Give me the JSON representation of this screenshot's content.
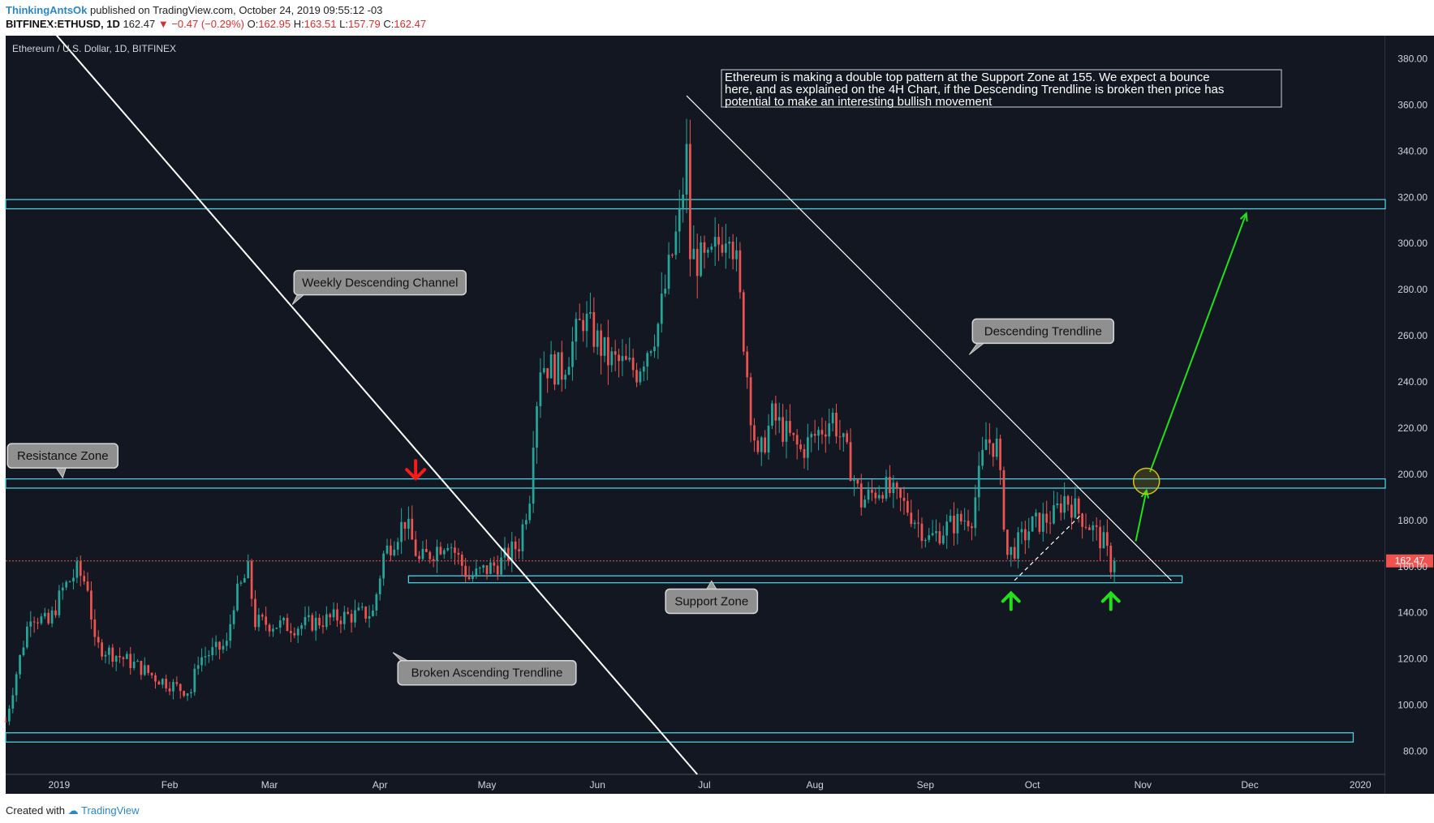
{
  "header": {
    "user": "ThinkingAntsOk",
    "published": "published on TradingView.com, October 24, 2019 09:55:12 -03",
    "symbol": "BITFINEX:ETHUSD, 1D",
    "last": "162.47",
    "change": "▼ −0.47 (−0.29%)",
    "o_label": "O:",
    "o_value": "162.95",
    "h_label": "H:",
    "h_value": "163.51",
    "l_label": "L:",
    "l_value": "157.79",
    "c_label": "C:",
    "c_value": "162.47"
  },
  "footer": {
    "created_with": "Created with",
    "brand": "TradingView"
  },
  "colors": {
    "bg": "#131722",
    "up": "#26a69a",
    "down": "#ef5350",
    "zone": "#4dd0e1",
    "arrow_green": "#22e01a",
    "arrow_red": "#ff1a1a",
    "circle": "#d4c21a"
  },
  "chart_data": {
    "type": "candlestick",
    "title": "Ethereum / U.S. Dollar, 1D, BITFINEX",
    "ylim": [
      70,
      390
    ],
    "yticks": [
      "380.00",
      "360.00",
      "340.00",
      "320.00",
      "300.00",
      "280.00",
      "260.00",
      "240.00",
      "220.00",
      "200.00",
      "180.00",
      "160.00",
      "140.00",
      "120.00",
      "100.00",
      "80.00"
    ],
    "ytick_values": [
      380,
      360,
      340,
      320,
      300,
      280,
      260,
      240,
      220,
      200,
      180,
      160,
      140,
      120,
      100,
      80
    ],
    "last_price_label": "162.47",
    "last_price": 162.47,
    "x_range": [
      "2018-12-17",
      "2020-01-08"
    ],
    "xticks": [
      {
        "label": "2019",
        "date": "2019-01-01"
      },
      {
        "label": "Feb",
        "date": "2019-02-01"
      },
      {
        "label": "Mar",
        "date": "2019-03-01"
      },
      {
        "label": "Apr",
        "date": "2019-04-01"
      },
      {
        "label": "May",
        "date": "2019-05-01"
      },
      {
        "label": "Jun",
        "date": "2019-06-01"
      },
      {
        "label": "Jul",
        "date": "2019-07-01"
      },
      {
        "label": "Aug",
        "date": "2019-08-01"
      },
      {
        "label": "Sep",
        "date": "2019-09-01"
      },
      {
        "label": "Oct",
        "date": "2019-10-01"
      },
      {
        "label": "Nov",
        "date": "2019-11-01"
      },
      {
        "label": "Dec",
        "date": "2019-12-01"
      },
      {
        "label": "2020",
        "date": "2020-01-01"
      }
    ],
    "candles_start_date": "2018-12-17",
    "candles_end_date": "2019-10-24",
    "close_anchors": [
      {
        "date": "2018-12-17",
        "close": 93
      },
      {
        "date": "2018-12-20",
        "close": 114
      },
      {
        "date": "2018-12-24",
        "close": 140
      },
      {
        "date": "2018-12-29",
        "close": 135
      },
      {
        "date": "2019-01-02",
        "close": 150
      },
      {
        "date": "2019-01-06",
        "close": 158
      },
      {
        "date": "2019-01-09",
        "close": 152
      },
      {
        "date": "2019-01-11",
        "close": 126
      },
      {
        "date": "2019-01-18",
        "close": 121
      },
      {
        "date": "2019-01-24",
        "close": 116
      },
      {
        "date": "2019-01-28",
        "close": 112
      },
      {
        "date": "2019-02-04",
        "close": 107
      },
      {
        "date": "2019-02-07",
        "close": 106
      },
      {
        "date": "2019-02-09",
        "close": 120
      },
      {
        "date": "2019-02-17",
        "close": 126
      },
      {
        "date": "2019-02-19",
        "close": 145
      },
      {
        "date": "2019-02-23",
        "close": 158
      },
      {
        "date": "2019-02-25",
        "close": 136
      },
      {
        "date": "2019-03-08",
        "close": 134
      },
      {
        "date": "2019-03-20",
        "close": 138
      },
      {
        "date": "2019-03-30",
        "close": 140
      },
      {
        "date": "2019-04-02",
        "close": 165
      },
      {
        "date": "2019-04-08",
        "close": 180
      },
      {
        "date": "2019-04-12",
        "close": 162
      },
      {
        "date": "2019-04-20",
        "close": 172
      },
      {
        "date": "2019-04-26",
        "close": 155
      },
      {
        "date": "2019-05-05",
        "close": 162
      },
      {
        "date": "2019-05-10",
        "close": 170
      },
      {
        "date": "2019-05-13",
        "close": 192
      },
      {
        "date": "2019-05-14",
        "close": 218
      },
      {
        "date": "2019-05-16",
        "close": 248
      },
      {
        "date": "2019-05-22",
        "close": 245
      },
      {
        "date": "2019-05-28",
        "close": 268
      },
      {
        "date": "2019-06-04",
        "close": 250
      },
      {
        "date": "2019-06-12",
        "close": 245
      },
      {
        "date": "2019-06-18",
        "close": 265
      },
      {
        "date": "2019-06-21",
        "close": 288
      },
      {
        "date": "2019-06-24",
        "close": 310
      },
      {
        "date": "2019-06-26",
        "close": 338
      },
      {
        "date": "2019-06-27",
        "close": 295
      },
      {
        "date": "2019-07-02",
        "close": 290
      },
      {
        "date": "2019-07-08",
        "close": 310
      },
      {
        "date": "2019-07-10",
        "close": 290
      },
      {
        "date": "2019-07-14",
        "close": 228
      },
      {
        "date": "2019-07-16",
        "close": 205
      },
      {
        "date": "2019-07-20",
        "close": 225
      },
      {
        "date": "2019-07-28",
        "close": 210
      },
      {
        "date": "2019-08-06",
        "close": 225
      },
      {
        "date": "2019-08-10",
        "close": 208
      },
      {
        "date": "2019-08-14",
        "close": 188
      },
      {
        "date": "2019-08-20",
        "close": 195
      },
      {
        "date": "2019-08-27",
        "close": 185
      },
      {
        "date": "2019-09-02",
        "close": 172
      },
      {
        "date": "2019-09-08",
        "close": 178
      },
      {
        "date": "2019-09-14",
        "close": 182
      },
      {
        "date": "2019-09-18",
        "close": 215
      },
      {
        "date": "2019-09-21",
        "close": 212
      },
      {
        "date": "2019-09-24",
        "close": 165
      },
      {
        "date": "2019-09-26",
        "close": 168
      },
      {
        "date": "2019-10-01",
        "close": 178
      },
      {
        "date": "2019-10-07",
        "close": 182
      },
      {
        "date": "2019-10-10",
        "close": 190
      },
      {
        "date": "2019-10-13",
        "close": 185
      },
      {
        "date": "2019-10-17",
        "close": 178
      },
      {
        "date": "2019-10-21",
        "close": 170
      },
      {
        "date": "2019-10-23",
        "close": 161
      },
      {
        "date": "2019-10-24",
        "close": 162.47
      }
    ],
    "zones": [
      {
        "name": "Top Resistance",
        "low": 315,
        "high": 319,
        "start": "2018-12-17",
        "end": "2020-01-08"
      },
      {
        "name": "Resistance Zone",
        "low": 194,
        "high": 198,
        "start": "2018-12-17",
        "end": "2020-01-08"
      },
      {
        "name": "Support Zone",
        "low": 153,
        "high": 156,
        "start": "2019-04-09",
        "end": "2019-11-12"
      },
      {
        "name": "Lower Zone",
        "low": 84,
        "high": 88,
        "start": "2018-12-17",
        "end": "2019-12-30"
      }
    ],
    "lines": [
      {
        "name": "Weekly Descending Channel",
        "start": {
          "date": "2018-12-28",
          "price": 396
        },
        "end": {
          "date": "2019-06-29",
          "price": 70
        }
      },
      {
        "name": "Descending Trendline",
        "start": {
          "date": "2019-06-26",
          "price": 364
        },
        "end": {
          "date": "2019-11-09",
          "price": 154
        }
      },
      {
        "name": "Rising Dashed",
        "start": {
          "date": "2019-09-26",
          "price": 154
        },
        "end": {
          "date": "2019-10-15",
          "price": 183
        },
        "dashed": true
      },
      {
        "name": "Projection Short",
        "start": {
          "date": "2019-10-30",
          "price": 171
        },
        "end": {
          "date": "2019-11-02",
          "price": 193
        },
        "color": "green"
      },
      {
        "name": "Projection Long",
        "start": {
          "date": "2019-11-03",
          "price": 201
        },
        "end": {
          "date": "2019-11-30",
          "price": 313
        },
        "color": "green"
      }
    ],
    "markers": [
      {
        "type": "down-arrow",
        "date": "2019-04-11",
        "price": 202,
        "color": "red"
      },
      {
        "type": "up-arrow",
        "date": "2019-09-25",
        "price": 145,
        "color": "green"
      },
      {
        "type": "up-arrow",
        "date": "2019-10-23",
        "price": 145,
        "color": "green"
      },
      {
        "type": "circle",
        "date": "2019-11-02",
        "price": 197
      }
    ],
    "annotations": [
      {
        "text": "Resistance Zone",
        "date": "2019-01-02",
        "price": 208
      },
      {
        "text": "Weekly Descending Channel",
        "date": "2019-04-01",
        "price": 283
      },
      {
        "text": "Descending Trendline",
        "date": "2019-10-04",
        "price": 262
      },
      {
        "text": "Support Zone",
        "date": "2019-07-03",
        "price": 145
      },
      {
        "text": "Broken Ascending Trendline",
        "date": "2019-05-01",
        "price": 114
      }
    ],
    "note": [
      "Ethereum is making a double top pattern at the Support Zone at 155. We expect a bounce",
      "here, and as explained on the 4H Chart, if the Descending Trendline is broken then price has",
      "potential to make an interesting bullish movement"
    ]
  }
}
